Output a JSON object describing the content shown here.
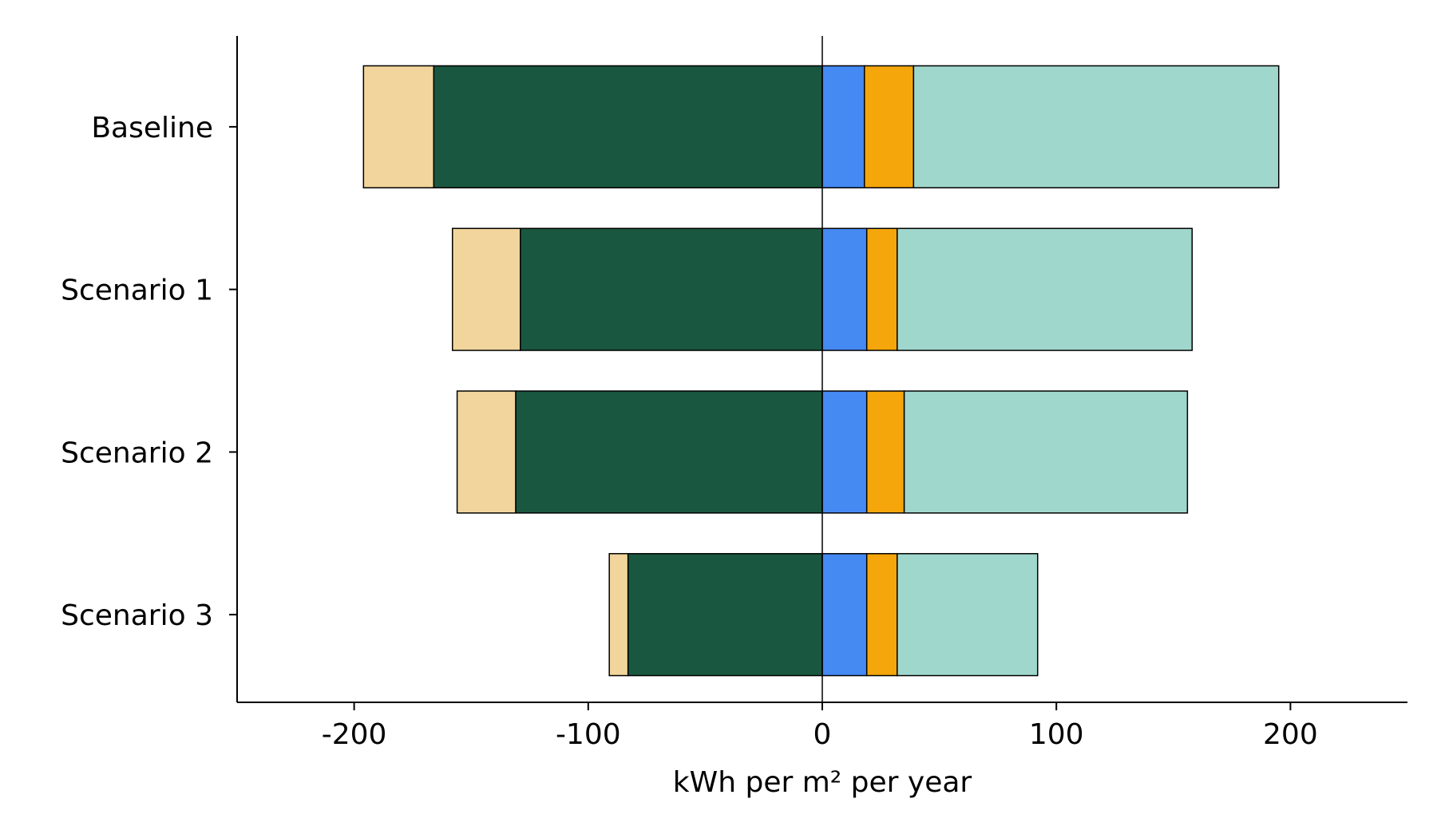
{
  "chart_data": {
    "type": "bar",
    "orientation": "horizontal",
    "stacked": true,
    "diverging": true,
    "title": "",
    "xlabel": "kWh per m² per year",
    "ylabel": "",
    "xlim": [
      -250,
      250
    ],
    "x_ticks": [
      -200,
      -100,
      0,
      100,
      200
    ],
    "x_tick_labels": [
      "-200",
      "-100",
      "0",
      "100",
      "200"
    ],
    "categories": [
      "Baseline",
      "Scenario 1",
      "Scenario 2",
      "Scenario 3"
    ],
    "grid": false,
    "legend": false,
    "zero_line": true,
    "series": [
      {
        "color": "#1a5740",
        "side": "negative",
        "values": [
          -166,
          -129,
          -131,
          -83
        ]
      },
      {
        "color": "#f1d59c",
        "side": "negative",
        "values": [
          -30,
          -29,
          -25,
          -8
        ]
      },
      {
        "color": "#4589f3",
        "side": "positive",
        "values": [
          18,
          19,
          19,
          19
        ]
      },
      {
        "color": "#f4a60a",
        "side": "positive",
        "values": [
          21,
          13,
          16,
          13
        ]
      },
      {
        "color": "#a0d7cd",
        "side": "positive",
        "values": [
          156,
          126,
          121,
          60
        ]
      }
    ]
  }
}
